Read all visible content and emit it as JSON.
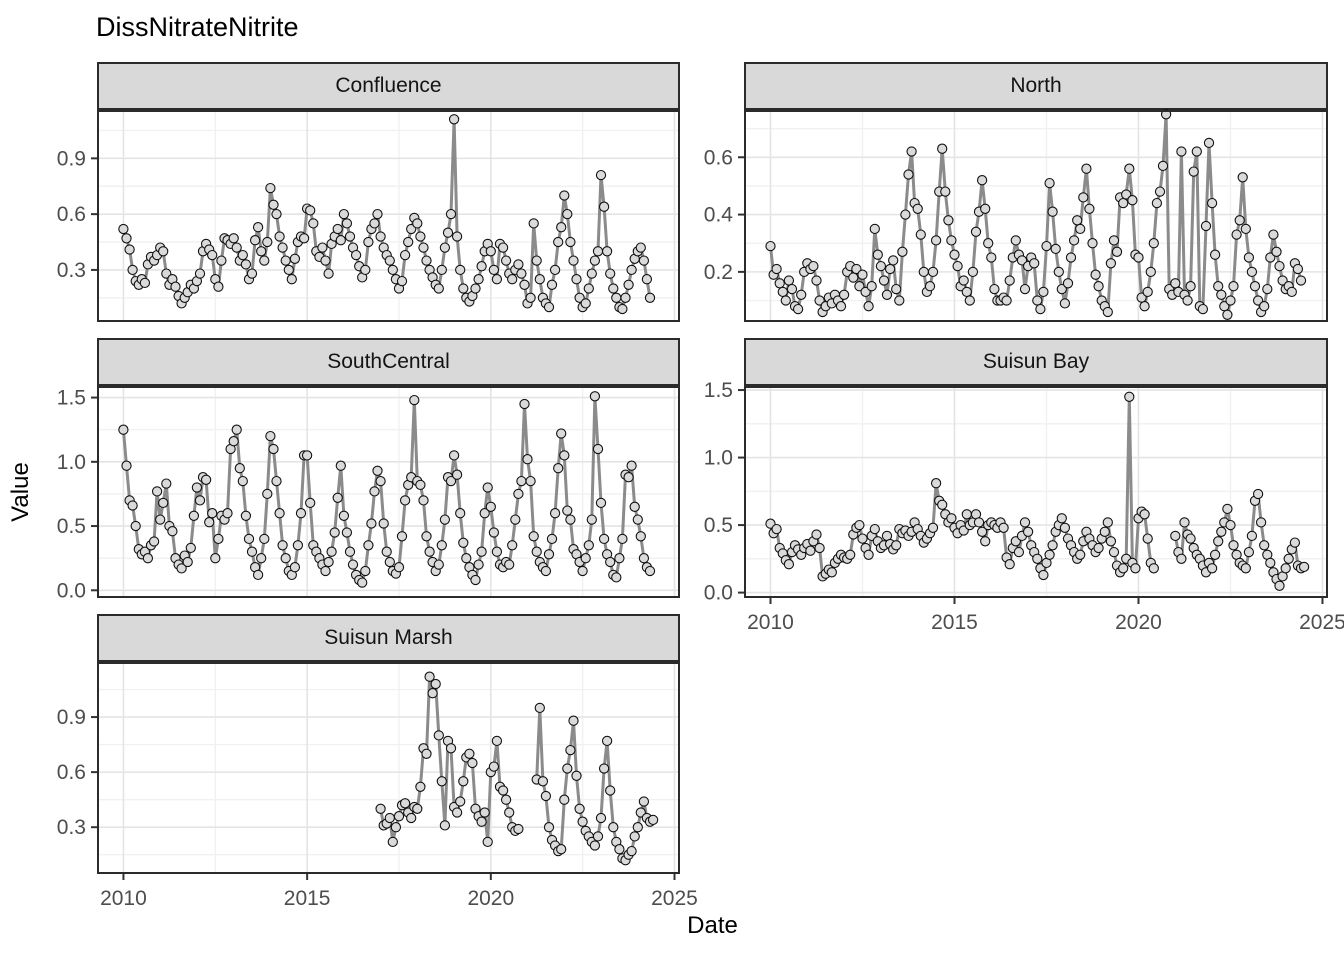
{
  "title": "DissNitrateNitrite",
  "xlabel": "Date",
  "ylabel": "Value",
  "colors": {
    "line": "#8b8b8b",
    "point_fill": "#dadada",
    "point_stroke": "#111111",
    "panel_border": "#2b2b2b",
    "strip_bg": "#d9d9d9",
    "grid_major": "#e4e4e4",
    "grid_minor": "#f1f1f1",
    "tick_label": "#4d4d4d",
    "tick_mark": "#333333"
  },
  "axes": {
    "xlim": [
      2009.28,
      2025.15
    ],
    "x_tick_values": [
      2010,
      2015,
      2020,
      2025
    ],
    "x_tick_labels": [
      "2010",
      "2015",
      "2020",
      "2025"
    ],
    "x_minor": [
      2012.5,
      2017.5,
      2022.5
    ],
    "cadence": "monthly"
  },
  "chart_data": [
    {
      "type": "line",
      "name": "Confluence",
      "ylim": [
        0.02,
        1.16
      ],
      "y_tick_values": [
        0.3,
        0.6,
        0.9
      ],
      "y_tick_labels": [
        "0.3",
        "0.6",
        "0.9"
      ],
      "y_minor": [
        0.15,
        0.45,
        0.75,
        1.05
      ],
      "show_x_axis": false,
      "segments": [
        {
          "start": 2010.0,
          "values": [
            0.52,
            0.47,
            0.41,
            0.3,
            0.24,
            0.22,
            0.25,
            0.23,
            0.33,
            0.37,
            0.35,
            0.38,
            0.42,
            0.4,
            0.28,
            0.22,
            0.25,
            0.21,
            0.16,
            0.12,
            0.15,
            0.18,
            0.22,
            0.2,
            0.24,
            0.28,
            0.4,
            0.44,
            0.41,
            0.38,
            0.25,
            0.21,
            0.35,
            0.47,
            0.46,
            0.44,
            0.47,
            0.42,
            0.35,
            0.38,
            0.33,
            0.25,
            0.28,
            0.46,
            0.53,
            0.4,
            0.35,
            0.45,
            0.74,
            0.65,
            0.6,
            0.48,
            0.42,
            0.35,
            0.3,
            0.25,
            0.36,
            0.45,
            0.48,
            0.47,
            0.63,
            0.62,
            0.55,
            0.4,
            0.37,
            0.42,
            0.35,
            0.28,
            0.44,
            0.48,
            0.52,
            0.46,
            0.6,
            0.55,
            0.48,
            0.42,
            0.38,
            0.32,
            0.26,
            0.3,
            0.45,
            0.52,
            0.55,
            0.6,
            0.48,
            0.42,
            0.38,
            0.35,
            0.3,
            0.25,
            0.2,
            0.24,
            0.38,
            0.45,
            0.52,
            0.58,
            0.55,
            0.48,
            0.42,
            0.35,
            0.3,
            0.26,
            0.22,
            0.2,
            0.3,
            0.42,
            0.5,
            0.6,
            1.11,
            0.48,
            0.3,
            0.2,
            0.15,
            0.13,
            0.16,
            0.2,
            0.25,
            0.32,
            0.4,
            0.44,
            0.4,
            0.3,
            0.25,
            0.44,
            0.42,
            0.35,
            0.28,
            0.25,
            0.3,
            0.33,
            0.28,
            0.22,
            0.12,
            0.15,
            0.55,
            0.35,
            0.25,
            0.15,
            0.12,
            0.1,
            0.22,
            0.3,
            0.45,
            0.53,
            0.7,
            0.6,
            0.45,
            0.35,
            0.25,
            0.15,
            0.1,
            0.12,
            0.2,
            0.28,
            0.35,
            0.4,
            0.81,
            0.64,
            0.4,
            0.28,
            0.2,
            0.15,
            0.1,
            0.09,
            0.15,
            0.22,
            0.3,
            0.36,
            0.4,
            0.42,
            0.35,
            0.25,
            0.15
          ]
        }
      ]
    },
    {
      "type": "line",
      "name": "North",
      "ylim": [
        0.025,
        0.765
      ],
      "y_tick_values": [
        0.2,
        0.4,
        0.6
      ],
      "y_tick_labels": [
        "0.2",
        "0.4",
        "0.6"
      ],
      "y_minor": [
        0.1,
        0.3,
        0.5,
        0.7
      ],
      "show_x_axis": false,
      "segments": [
        {
          "start": 2010.0,
          "values": [
            0.29,
            0.19,
            0.21,
            0.16,
            0.13,
            0.1,
            0.17,
            0.14,
            0.08,
            0.07,
            0.12,
            0.2,
            0.23,
            0.21,
            0.22,
            0.17,
            0.1,
            0.06,
            0.08,
            0.11,
            0.09,
            0.12,
            0.1,
            0.08,
            0.12,
            0.2,
            0.22,
            0.18,
            0.21,
            0.15,
            0.19,
            0.13,
            0.08,
            0.15,
            0.35,
            0.26,
            0.22,
            0.17,
            0.12,
            0.21,
            0.24,
            0.14,
            0.1,
            0.27,
            0.4,
            0.54,
            0.62,
            0.44,
            0.42,
            0.33,
            0.2,
            0.13,
            0.15,
            0.2,
            0.31,
            0.48,
            0.63,
            0.48,
            0.38,
            0.31,
            0.26,
            0.22,
            0.15,
            0.17,
            0.13,
            0.1,
            0.2,
            0.34,
            0.41,
            0.52,
            0.42,
            0.3,
            0.25,
            0.14,
            0.1,
            0.1,
            0.11,
            0.1,
            0.17,
            0.25,
            0.31,
            0.26,
            0.24,
            0.14,
            0.22,
            0.25,
            0.23,
            0.1,
            0.07,
            0.13,
            0.29,
            0.51,
            0.41,
            0.28,
            0.2,
            0.14,
            0.09,
            0.16,
            0.25,
            0.31,
            0.38,
            0.35,
            0.46,
            0.56,
            0.42,
            0.3,
            0.19,
            0.15,
            0.1,
            0.08,
            0.06,
            0.23,
            0.31,
            0.27,
            0.46,
            0.44,
            0.47,
            0.56,
            0.45,
            0.26,
            0.25,
            0.11,
            0.08,
            0.13,
            0.2,
            0.3,
            0.44,
            0.48,
            0.57,
            0.75,
            0.14,
            0.12,
            0.16,
            0.13,
            0.62,
            0.12,
            0.1,
            0.15,
            0.55,
            0.62,
            0.08,
            0.07,
            0.36,
            0.65,
            0.44,
            0.26,
            0.15,
            0.12,
            0.08,
            0.05,
            0.1,
            0.15,
            0.33,
            0.38,
            0.53,
            0.35,
            0.25,
            0.2,
            0.15,
            0.1,
            0.06,
            0.08,
            0.14,
            0.25,
            0.33,
            0.27,
            0.22,
            0.17,
            0.14,
            0.15,
            0.13,
            0.23,
            0.21,
            0.17
          ]
        }
      ]
    },
    {
      "type": "line",
      "name": "SouthCentral",
      "ylim": [
        -0.06,
        1.59
      ],
      "y_tick_values": [
        0.0,
        0.5,
        1.0,
        1.5
      ],
      "y_tick_labels": [
        "0.0",
        "0.5",
        "1.0",
        "1.5"
      ],
      "y_minor": [
        0.25,
        0.75,
        1.25
      ],
      "show_x_axis": false,
      "segments": [
        {
          "start": 2010.0,
          "values": [
            1.25,
            0.97,
            0.7,
            0.66,
            0.5,
            0.32,
            0.28,
            0.3,
            0.25,
            0.35,
            0.38,
            0.77,
            0.55,
            0.68,
            0.83,
            0.5,
            0.46,
            0.25,
            0.2,
            0.17,
            0.27,
            0.22,
            0.33,
            0.58,
            0.8,
            0.7,
            0.88,
            0.86,
            0.53,
            0.6,
            0.25,
            0.4,
            0.58,
            0.55,
            0.6,
            1.1,
            1.16,
            1.25,
            0.95,
            0.85,
            0.58,
            0.4,
            0.3,
            0.18,
            0.12,
            0.25,
            0.4,
            0.75,
            1.2,
            1.1,
            0.85,
            0.6,
            0.35,
            0.25,
            0.15,
            0.12,
            0.18,
            0.35,
            0.6,
            1.05,
            1.05,
            0.68,
            0.35,
            0.3,
            0.25,
            0.2,
            0.15,
            0.22,
            0.3,
            0.45,
            0.72,
            0.97,
            0.58,
            0.45,
            0.3,
            0.2,
            0.12,
            0.08,
            0.06,
            0.15,
            0.35,
            0.52,
            0.77,
            0.93,
            0.85,
            0.52,
            0.3,
            0.22,
            0.15,
            0.13,
            0.18,
            0.42,
            0.7,
            0.82,
            0.88,
            1.48,
            0.85,
            0.82,
            0.7,
            0.42,
            0.3,
            0.22,
            0.15,
            0.2,
            0.35,
            0.55,
            0.88,
            0.85,
            1.05,
            0.9,
            0.6,
            0.37,
            0.25,
            0.18,
            0.12,
            0.08,
            0.2,
            0.3,
            0.6,
            0.8,
            0.65,
            0.45,
            0.3,
            0.2,
            0.18,
            0.22,
            0.2,
            0.35,
            0.55,
            0.75,
            0.85,
            1.45,
            1.02,
            0.85,
            0.42,
            0.3,
            0.22,
            0.18,
            0.15,
            0.28,
            0.4,
            0.6,
            0.95,
            1.22,
            1.05,
            0.62,
            0.55,
            0.32,
            0.28,
            0.22,
            0.15,
            0.25,
            0.35,
            0.55,
            1.51,
            1.1,
            0.68,
            0.4,
            0.28,
            0.22,
            0.12,
            0.1,
            0.25,
            0.4,
            0.9,
            0.88,
            0.97,
            0.65,
            0.55,
            0.42,
            0.25,
            0.18,
            0.15
          ]
        }
      ]
    },
    {
      "type": "line",
      "name": "Suisun Bay",
      "ylim": [
        -0.04,
        1.53
      ],
      "y_tick_values": [
        0.0,
        0.5,
        1.0,
        1.5
      ],
      "y_tick_labels": [
        "0.0",
        "0.5",
        "1.0",
        "1.5"
      ],
      "y_minor": [
        0.25,
        0.75,
        1.25
      ],
      "show_x_axis": true,
      "segments": [
        {
          "start": 2010.0,
          "values": [
            0.51,
            0.44,
            0.47,
            0.33,
            0.29,
            0.24,
            0.21,
            0.3,
            0.35,
            0.32,
            0.28,
            0.33,
            0.36,
            0.31,
            0.38,
            0.43,
            0.33,
            0.12,
            0.14,
            0.17,
            0.15,
            0.22,
            0.25,
            0.28,
            0.26,
            0.25,
            0.28,
            0.43,
            0.48,
            0.5,
            0.4,
            0.33,
            0.28,
            0.42,
            0.47,
            0.38,
            0.33,
            0.35,
            0.42,
            0.36,
            0.32,
            0.35,
            0.47,
            0.44,
            0.46,
            0.42,
            0.45,
            0.52,
            0.47,
            0.42,
            0.37,
            0.4,
            0.44,
            0.48,
            0.81,
            0.68,
            0.65,
            0.58,
            0.52,
            0.55,
            0.48,
            0.44,
            0.5,
            0.46,
            0.58,
            0.5,
            0.52,
            0.58,
            0.52,
            0.45,
            0.38,
            0.5,
            0.52,
            0.5,
            0.48,
            0.52,
            0.48,
            0.26,
            0.21,
            0.33,
            0.38,
            0.3,
            0.42,
            0.52,
            0.45,
            0.35,
            0.3,
            0.25,
            0.18,
            0.13,
            0.22,
            0.28,
            0.35,
            0.45,
            0.5,
            0.55,
            0.48,
            0.4,
            0.35,
            0.3,
            0.25,
            0.28,
            0.38,
            0.45,
            0.4,
            0.35,
            0.3,
            0.33,
            0.4,
            0.45,
            0.52,
            0.38,
            0.3,
            0.2,
            0.15,
            0.18,
            0.25,
            1.45,
            0.22,
            0.18,
            0.55,
            0.6,
            0.58,
            0.4,
            0.22,
            0.18
          ]
        },
        {
          "start": 2021.0,
          "values": [
            0.42,
            0.3,
            0.25,
            0.52,
            0.43,
            0.4,
            0.33,
            0.28,
            0.25,
            0.2,
            0.15,
            0.22,
            0.18,
            0.28,
            0.38,
            0.45,
            0.52,
            0.62,
            0.5,
            0.35,
            0.28,
            0.22,
            0.2,
            0.18,
            0.3,
            0.42,
            0.68,
            0.73,
            0.52,
            0.35,
            0.28,
            0.22,
            0.15,
            0.1,
            0.05,
            0.12,
            0.18,
            0.25,
            0.32,
            0.37,
            0.2,
            0.18,
            0.19
          ]
        }
      ]
    },
    {
      "type": "line",
      "name": "Suisun Marsh",
      "ylim": [
        0.045,
        1.2
      ],
      "y_tick_values": [
        0.3,
        0.6,
        0.9
      ],
      "y_tick_labels": [
        "0.3",
        "0.6",
        "0.9"
      ],
      "y_minor": [
        0.15,
        0.45,
        0.75,
        1.05
      ],
      "show_x_axis": true,
      "segments": [
        {
          "start": 2017.0,
          "values": [
            0.4,
            0.31,
            0.32,
            0.35,
            0.22,
            0.3,
            0.36,
            0.42,
            0.43,
            0.38,
            0.35,
            0.41,
            0.4,
            0.52,
            0.73,
            0.7,
            1.12,
            1.03,
            1.08,
            0.8,
            0.55,
            0.31,
            0.77,
            0.73,
            0.41,
            0.38,
            0.44,
            0.55,
            0.68,
            0.7,
            0.65,
            0.4,
            0.36,
            0.33,
            0.38,
            0.22,
            0.6,
            0.63,
            0.77,
            0.52,
            0.5,
            0.45,
            0.38,
            0.3,
            0.28,
            0.29
          ]
        },
        {
          "start": 2021.25,
          "values": [
            0.56,
            0.95,
            0.55,
            0.47,
            0.3,
            0.23,
            0.2,
            0.17,
            0.18,
            0.45,
            0.62,
            0.72,
            0.88,
            0.58,
            0.4,
            0.33,
            0.28,
            0.25,
            0.22,
            0.2,
            0.25,
            0.35,
            0.62,
            0.77,
            0.5,
            0.3,
            0.22,
            0.18,
            0.13,
            0.12,
            0.15,
            0.17,
            0.25,
            0.3,
            0.38,
            0.44,
            0.35,
            0.33,
            0.34
          ]
        }
      ]
    }
  ]
}
